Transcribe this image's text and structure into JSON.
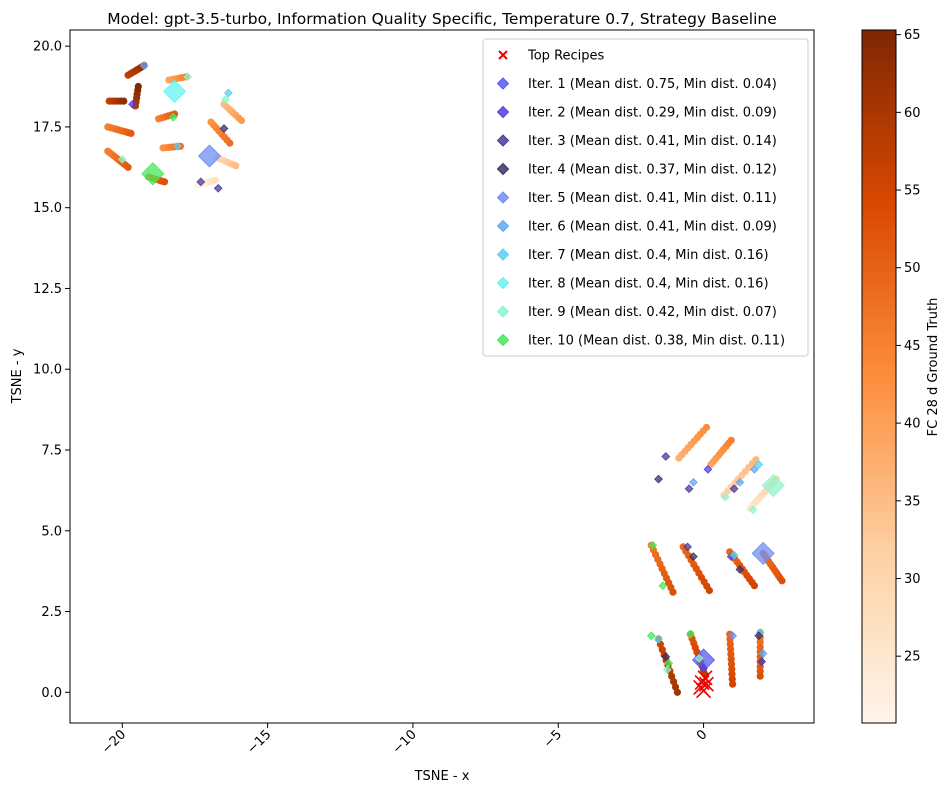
{
  "chart_data": {
    "type": "scatter",
    "title": "Model: gpt-3.5-turbo, Information Quality Specific, Temperature 0.7, Strategy Baseline",
    "xlabel": "TSNE - x",
    "ylabel": "TSNE - y",
    "xlim": [
      -21.8,
      3.8
    ],
    "ylim": [
      -0.95,
      20.5
    ],
    "xticks": [
      -20,
      -15,
      -10,
      -5,
      0
    ],
    "xtick_labels": [
      "−20",
      "−15",
      "−10",
      "−5",
      "0"
    ],
    "yticks": [
      0.0,
      2.5,
      5.0,
      7.5,
      10.0,
      12.5,
      15.0,
      17.5,
      20.0
    ],
    "ytick_labels": [
      "0.0",
      "2.5",
      "5.0",
      "7.5",
      "10.0",
      "12.5",
      "15.0",
      "17.5",
      "20.0"
    ],
    "grid": false,
    "legend_position": "top-right",
    "legend": [
      {
        "label": "Top Recipes",
        "marker": "x",
        "color": "#ee0000"
      },
      {
        "label": "Iter. 1 (Mean dist. 0.75, Min dist. 0.04)",
        "marker": "D",
        "color": "#5a5af0"
      },
      {
        "label": "Iter. 2 (Mean dist. 0.29, Min dist. 0.09)",
        "marker": "D",
        "color": "#5540d8"
      },
      {
        "label": "Iter. 3 (Mean dist. 0.41, Min dist. 0.14)",
        "marker": "D",
        "color": "#4b3c9c"
      },
      {
        "label": "Iter. 4 (Mean dist. 0.37, Min dist. 0.12)",
        "marker": "D",
        "color": "#3e3266"
      },
      {
        "label": "Iter. 5 (Mean dist. 0.41, Min dist. 0.11)",
        "marker": "D",
        "color": "#6f8ef5"
      },
      {
        "label": "Iter. 6 (Mean dist. 0.41, Min dist. 0.09)",
        "marker": "D",
        "color": "#62a8f2"
      },
      {
        "label": "Iter. 7 (Mean dist. 0.4, Min dist. 0.16)",
        "marker": "D",
        "color": "#5ccff2"
      },
      {
        "label": "Iter. 8 (Mean dist. 0.4, Min dist. 0.16)",
        "marker": "D",
        "color": "#66f3f2"
      },
      {
        "label": "Iter. 9 (Mean dist. 0.42, Min dist. 0.07)",
        "marker": "D",
        "color": "#8ff5cc"
      },
      {
        "label": "Iter. 10 (Mean dist. 0.38, Min dist. 0.11)",
        "marker": "D",
        "color": "#47e85a"
      }
    ],
    "colorbar": {
      "label": "FC 28 d Ground Truth",
      "range": [
        20.7,
        65.3
      ],
      "ticks": [
        25,
        30,
        35,
        40,
        45,
        50,
        55,
        60,
        65
      ],
      "colormap": "Oranges"
    },
    "series": [
      {
        "kind": "ground_truth_curves",
        "curves": [
          {
            "start": [
              -19.8,
              19.1
            ],
            "end": [
              -19.25,
              19.4
            ],
            "n": 9,
            "value": 60
          },
          {
            "start": [
              -20.45,
              18.3
            ],
            "end": [
              -19.95,
              18.3
            ],
            "n": 6,
            "value": 60
          },
          {
            "start": [
              -19.55,
              18.15
            ],
            "end": [
              -19.45,
              18.75
            ],
            "n": 6,
            "value": 62
          },
          {
            "start": [
              -20.5,
              17.5
            ],
            "end": [
              -19.7,
              17.3
            ],
            "n": 11,
            "value": 48
          },
          {
            "start": [
              -20.5,
              16.75
            ],
            "end": [
              -19.8,
              16.25
            ],
            "n": 10,
            "value": 48
          },
          {
            "start": [
              -18.75,
              17.75
            ],
            "end": [
              -18.2,
              17.9
            ],
            "n": 6,
            "value": 48
          },
          {
            "start": [
              -18.6,
              16.85
            ],
            "end": [
              -18.0,
              16.9
            ],
            "n": 7,
            "value": 45
          },
          {
            "start": [
              -19.1,
              15.95
            ],
            "end": [
              -18.55,
              15.8
            ],
            "n": 8,
            "value": 50
          },
          {
            "start": [
              -18.4,
              18.95
            ],
            "end": [
              -17.8,
              19.05
            ],
            "n": 6,
            "value": 42
          },
          {
            "start": [
              -16.5,
              18.2
            ],
            "end": [
              -15.9,
              17.7
            ],
            "n": 7,
            "value": 38
          },
          {
            "start": [
              -16.95,
              17.65
            ],
            "end": [
              -16.3,
              17.0
            ],
            "n": 8,
            "value": 45
          },
          {
            "start": [
              -16.75,
              16.55
            ],
            "end": [
              -16.1,
              16.3
            ],
            "n": 6,
            "value": 32
          },
          {
            "start": [
              -17.4,
              15.7
            ],
            "end": [
              -16.8,
              15.85
            ],
            "n": 6,
            "value": 24
          },
          {
            "start": [
              -0.85,
              7.25
            ],
            "end": [
              0.1,
              8.2
            ],
            "n": 10,
            "value": 40
          },
          {
            "start": [
              0.25,
              7.05
            ],
            "end": [
              0.95,
              7.8
            ],
            "n": 9,
            "value": 42
          },
          {
            "start": [
              0.7,
              6.1
            ],
            "end": [
              1.8,
              7.2
            ],
            "n": 10,
            "value": 33
          },
          {
            "start": [
              1.6,
              5.7
            ],
            "end": [
              2.5,
              6.6
            ],
            "n": 10,
            "value": 28
          },
          {
            "start": [
              -1.8,
              4.55
            ],
            "end": [
              -1.05,
              3.1
            ],
            "n": 11,
            "value": 50
          },
          {
            "start": [
              -0.7,
              4.5
            ],
            "end": [
              0.2,
              3.15
            ],
            "n": 11,
            "value": 52
          },
          {
            "start": [
              0.9,
              4.35
            ],
            "end": [
              1.75,
              3.3
            ],
            "n": 11,
            "value": 52
          },
          {
            "start": [
              2.05,
              4.3
            ],
            "end": [
              2.7,
              3.45
            ],
            "n": 11,
            "value": 50
          },
          {
            "start": [
              -1.55,
              1.65
            ],
            "end": [
              -0.9,
              0.0
            ],
            "n": 11,
            "value": 58
          },
          {
            "start": [
              -0.45,
              1.8
            ],
            "end": [
              0.05,
              0.55
            ],
            "n": 10,
            "value": 55
          },
          {
            "start": [
              0.9,
              1.8
            ],
            "end": [
              1.0,
              0.25
            ],
            "n": 11,
            "value": 52
          },
          {
            "start": [
              1.95,
              1.85
            ],
            "end": [
              1.95,
              0.5
            ],
            "n": 10,
            "value": 50
          }
        ]
      },
      {
        "kind": "iteration_markers",
        "points": [
          {
            "x": 0.0,
            "y": 1.0,
            "iter": 1,
            "big": true
          },
          {
            "x": -17.0,
            "y": 16.6,
            "iter": 5,
            "big": true
          },
          {
            "x": 2.05,
            "y": 4.3,
            "iter": 5,
            "big": true
          },
          {
            "x": 2.4,
            "y": 6.4,
            "iter": 9,
            "big": true
          },
          {
            "x": -18.2,
            "y": 18.6,
            "iter": 8,
            "big": true
          },
          {
            "x": -18.95,
            "y": 16.05,
            "iter": 10,
            "big": true
          },
          {
            "x": -19.65,
            "y": 18.2,
            "iter": 2,
            "big": false
          },
          {
            "x": -16.5,
            "y": 17.45,
            "iter": 4,
            "big": false
          },
          {
            "x": -1.3,
            "y": 1.1,
            "iter": 4,
            "big": false
          },
          {
            "x": -1.55,
            "y": 6.6,
            "iter": 4,
            "big": false
          },
          {
            "x": 0.95,
            "y": 4.2,
            "iter": 2,
            "big": false
          },
          {
            "x": -1.2,
            "y": 0.9,
            "iter": 10,
            "big": false
          },
          {
            "x": -1.4,
            "y": 3.3,
            "iter": 10,
            "big": false
          },
          {
            "x": -18.1,
            "y": 16.9,
            "iter": 7,
            "big": false
          },
          {
            "x": -19.25,
            "y": 19.4,
            "iter": 6,
            "big": false
          },
          {
            "x": -17.75,
            "y": 19.05,
            "iter": 9,
            "big": false
          },
          {
            "x": -16.45,
            "y": 18.35,
            "iter": 9,
            "big": false
          },
          {
            "x": -16.35,
            "y": 18.55,
            "iter": 7,
            "big": false
          },
          {
            "x": -18.25,
            "y": 17.8,
            "iter": 10,
            "big": false
          },
          {
            "x": -20.0,
            "y": 16.5,
            "iter": 9,
            "big": false
          },
          {
            "x": -17.3,
            "y": 15.8,
            "iter": 3,
            "big": false
          },
          {
            "x": -16.7,
            "y": 15.6,
            "iter": 3,
            "big": false
          },
          {
            "x": -1.3,
            "y": 7.3,
            "iter": 3,
            "big": false
          },
          {
            "x": 0.15,
            "y": 6.9,
            "iter": 2,
            "big": false
          },
          {
            "x": -0.35,
            "y": 6.5,
            "iter": 6,
            "big": false
          },
          {
            "x": -0.5,
            "y": 6.3,
            "iter": 3,
            "big": false
          },
          {
            "x": 1.25,
            "y": 6.5,
            "iter": 6,
            "big": false
          },
          {
            "x": 1.05,
            "y": 6.3,
            "iter": 3,
            "big": false
          },
          {
            "x": 1.75,
            "y": 6.9,
            "iter": 6,
            "big": false
          },
          {
            "x": 1.9,
            "y": 7.05,
            "iter": 7,
            "big": false
          },
          {
            "x": 1.7,
            "y": 5.65,
            "iter": 9,
            "big": false
          },
          {
            "x": 0.75,
            "y": 6.05,
            "iter": 9,
            "big": false
          },
          {
            "x": -1.75,
            "y": 4.55,
            "iter": 10,
            "big": false
          },
          {
            "x": -0.55,
            "y": 4.5,
            "iter": 3,
            "big": false
          },
          {
            "x": -0.35,
            "y": 4.2,
            "iter": 4,
            "big": false
          },
          {
            "x": 1.05,
            "y": 4.25,
            "iter": 7,
            "big": false
          },
          {
            "x": 1.25,
            "y": 3.8,
            "iter": 4,
            "big": false
          },
          {
            "x": -1.55,
            "y": 1.65,
            "iter": 7,
            "big": false
          },
          {
            "x": -0.45,
            "y": 1.8,
            "iter": 10,
            "big": false
          },
          {
            "x": -0.15,
            "y": 1.05,
            "iter": 9,
            "big": false
          },
          {
            "x": 1.0,
            "y": 1.75,
            "iter": 5,
            "big": false
          },
          {
            "x": 1.95,
            "y": 1.85,
            "iter": 7,
            "big": false
          },
          {
            "x": 1.9,
            "y": 1.75,
            "iter": 4,
            "big": false
          },
          {
            "x": 2.05,
            "y": 1.2,
            "iter": 6,
            "big": false
          },
          {
            "x": 2.0,
            "y": 0.95,
            "iter": 3,
            "big": false
          },
          {
            "x": -1.8,
            "y": 1.75,
            "iter": 10,
            "big": false
          },
          {
            "x": -1.25,
            "y": 0.7,
            "iter": 9,
            "big": false
          },
          {
            "x": 0.0,
            "y": 0.75,
            "iter": 2,
            "big": false
          }
        ]
      },
      {
        "kind": "top_recipes",
        "points": [
          {
            "x": 0.0,
            "y": 0.05
          },
          {
            "x": 0.1,
            "y": 0.25
          },
          {
            "x": -0.1,
            "y": 0.15
          },
          {
            "x": 0.05,
            "y": 0.45
          },
          {
            "x": -0.05,
            "y": 0.3
          }
        ]
      }
    ]
  }
}
